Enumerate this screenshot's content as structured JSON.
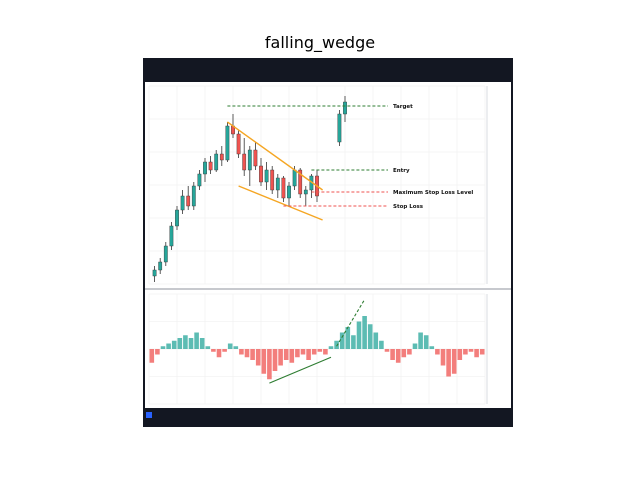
{
  "figure": {
    "title": "falling_wedge"
  },
  "colors": {
    "up": "#26a69a",
    "down": "#ef5350",
    "wedge": "#f5a623",
    "target_line": "#2e7d32",
    "stop_line": "#ef5350",
    "dark_frame": "#131722",
    "grid": "#eeeeee"
  },
  "chart_data": [
    {
      "type": "candlestick",
      "title": "",
      "price_ylim": [
        1,
        100
      ],
      "grid": true,
      "candles": [
        {
          "x": 1,
          "o": 5,
          "h": 10,
          "l": 2,
          "c": 8
        },
        {
          "x": 2,
          "o": 8,
          "h": 14,
          "l": 6,
          "c": 12
        },
        {
          "x": 3,
          "o": 12,
          "h": 22,
          "l": 10,
          "c": 20
        },
        {
          "x": 4,
          "o": 20,
          "h": 32,
          "l": 18,
          "c": 30
        },
        {
          "x": 5,
          "o": 30,
          "h": 40,
          "l": 28,
          "c": 38
        },
        {
          "x": 6,
          "o": 38,
          "h": 48,
          "l": 36,
          "c": 45
        },
        {
          "x": 7,
          "o": 45,
          "h": 50,
          "l": 38,
          "c": 40
        },
        {
          "x": 8,
          "o": 40,
          "h": 52,
          "l": 38,
          "c": 50
        },
        {
          "x": 9,
          "o": 50,
          "h": 58,
          "l": 48,
          "c": 56
        },
        {
          "x": 10,
          "o": 56,
          "h": 64,
          "l": 52,
          "c": 62
        },
        {
          "x": 11,
          "o": 62,
          "h": 65,
          "l": 56,
          "c": 58
        },
        {
          "x": 12,
          "o": 58,
          "h": 68,
          "l": 57,
          "c": 66
        },
        {
          "x": 13,
          "o": 66,
          "h": 70,
          "l": 60,
          "c": 63
        },
        {
          "x": 14,
          "o": 63,
          "h": 82,
          "l": 62,
          "c": 80
        },
        {
          "x": 15,
          "o": 80,
          "h": 86,
          "l": 74,
          "c": 76
        },
        {
          "x": 16,
          "o": 76,
          "h": 78,
          "l": 64,
          "c": 66
        },
        {
          "x": 17,
          "o": 66,
          "h": 74,
          "l": 55,
          "c": 58
        },
        {
          "x": 18,
          "o": 58,
          "h": 70,
          "l": 50,
          "c": 68
        },
        {
          "x": 19,
          "o": 68,
          "h": 72,
          "l": 58,
          "c": 60
        },
        {
          "x": 20,
          "o": 60,
          "h": 64,
          "l": 50,
          "c": 52
        },
        {
          "x": 21,
          "o": 52,
          "h": 62,
          "l": 48,
          "c": 58
        },
        {
          "x": 22,
          "o": 58,
          "h": 60,
          "l": 46,
          "c": 48
        },
        {
          "x": 23,
          "o": 48,
          "h": 56,
          "l": 44,
          "c": 54
        },
        {
          "x": 24,
          "o": 54,
          "h": 55,
          "l": 42,
          "c": 44
        },
        {
          "x": 25,
          "o": 44,
          "h": 52,
          "l": 40,
          "c": 50
        },
        {
          "x": 26,
          "o": 50,
          "h": 60,
          "l": 48,
          "c": 58
        },
        {
          "x": 27,
          "o": 58,
          "h": 59,
          "l": 44,
          "c": 46
        },
        {
          "x": 28,
          "o": 46,
          "h": 50,
          "l": 40,
          "c": 48
        },
        {
          "x": 29,
          "o": 48,
          "h": 56,
          "l": 44,
          "c": 55
        },
        {
          "x": 30,
          "o": 55,
          "h": 58,
          "l": 42,
          "c": 45
        },
        {
          "x": 34,
          "o": 72,
          "h": 88,
          "l": 70,
          "c": 86
        },
        {
          "x": 35,
          "o": 86,
          "h": 95,
          "l": 82,
          "c": 92
        }
      ],
      "annotations": [
        {
          "text": "Target",
          "y": 90
        },
        {
          "text": "Entry",
          "y": 58
        },
        {
          "text": "Maximum Stop Loss Level",
          "y": 47
        },
        {
          "text": "Stop Loss",
          "y": 40
        }
      ],
      "wedge": {
        "upper": [
          [
            14,
            82
          ],
          [
            31,
            48
          ]
        ],
        "lower": [
          [
            16,
            50
          ],
          [
            31,
            33
          ]
        ]
      },
      "price_tick_labels": [
        "",
        "",
        "",
        "",
        "",
        ""
      ]
    },
    {
      "type": "bar",
      "title": "",
      "ylim": [
        -1,
        1
      ],
      "values": [
        -0.25,
        -0.1,
        0.05,
        0.1,
        0.15,
        0.2,
        0.25,
        0.2,
        0.3,
        0.2,
        0.05,
        -0.05,
        -0.15,
        -0.05,
        0.1,
        0.05,
        -0.1,
        -0.15,
        -0.2,
        -0.3,
        -0.45,
        -0.55,
        -0.4,
        -0.3,
        -0.2,
        -0.25,
        -0.15,
        -0.1,
        -0.2,
        -0.1,
        -0.05,
        -0.1,
        0.05,
        0.15,
        0.3,
        0.4,
        0.25,
        0.5,
        0.6,
        0.45,
        0.3,
        0.15,
        -0.05,
        -0.2,
        -0.25,
        -0.15,
        -0.1,
        0.1,
        0.3,
        0.25,
        0.05,
        -0.1,
        -0.3,
        -0.5,
        -0.45,
        -0.2,
        -0.1,
        -0.05,
        -0.15,
        -0.1
      ]
    }
  ]
}
